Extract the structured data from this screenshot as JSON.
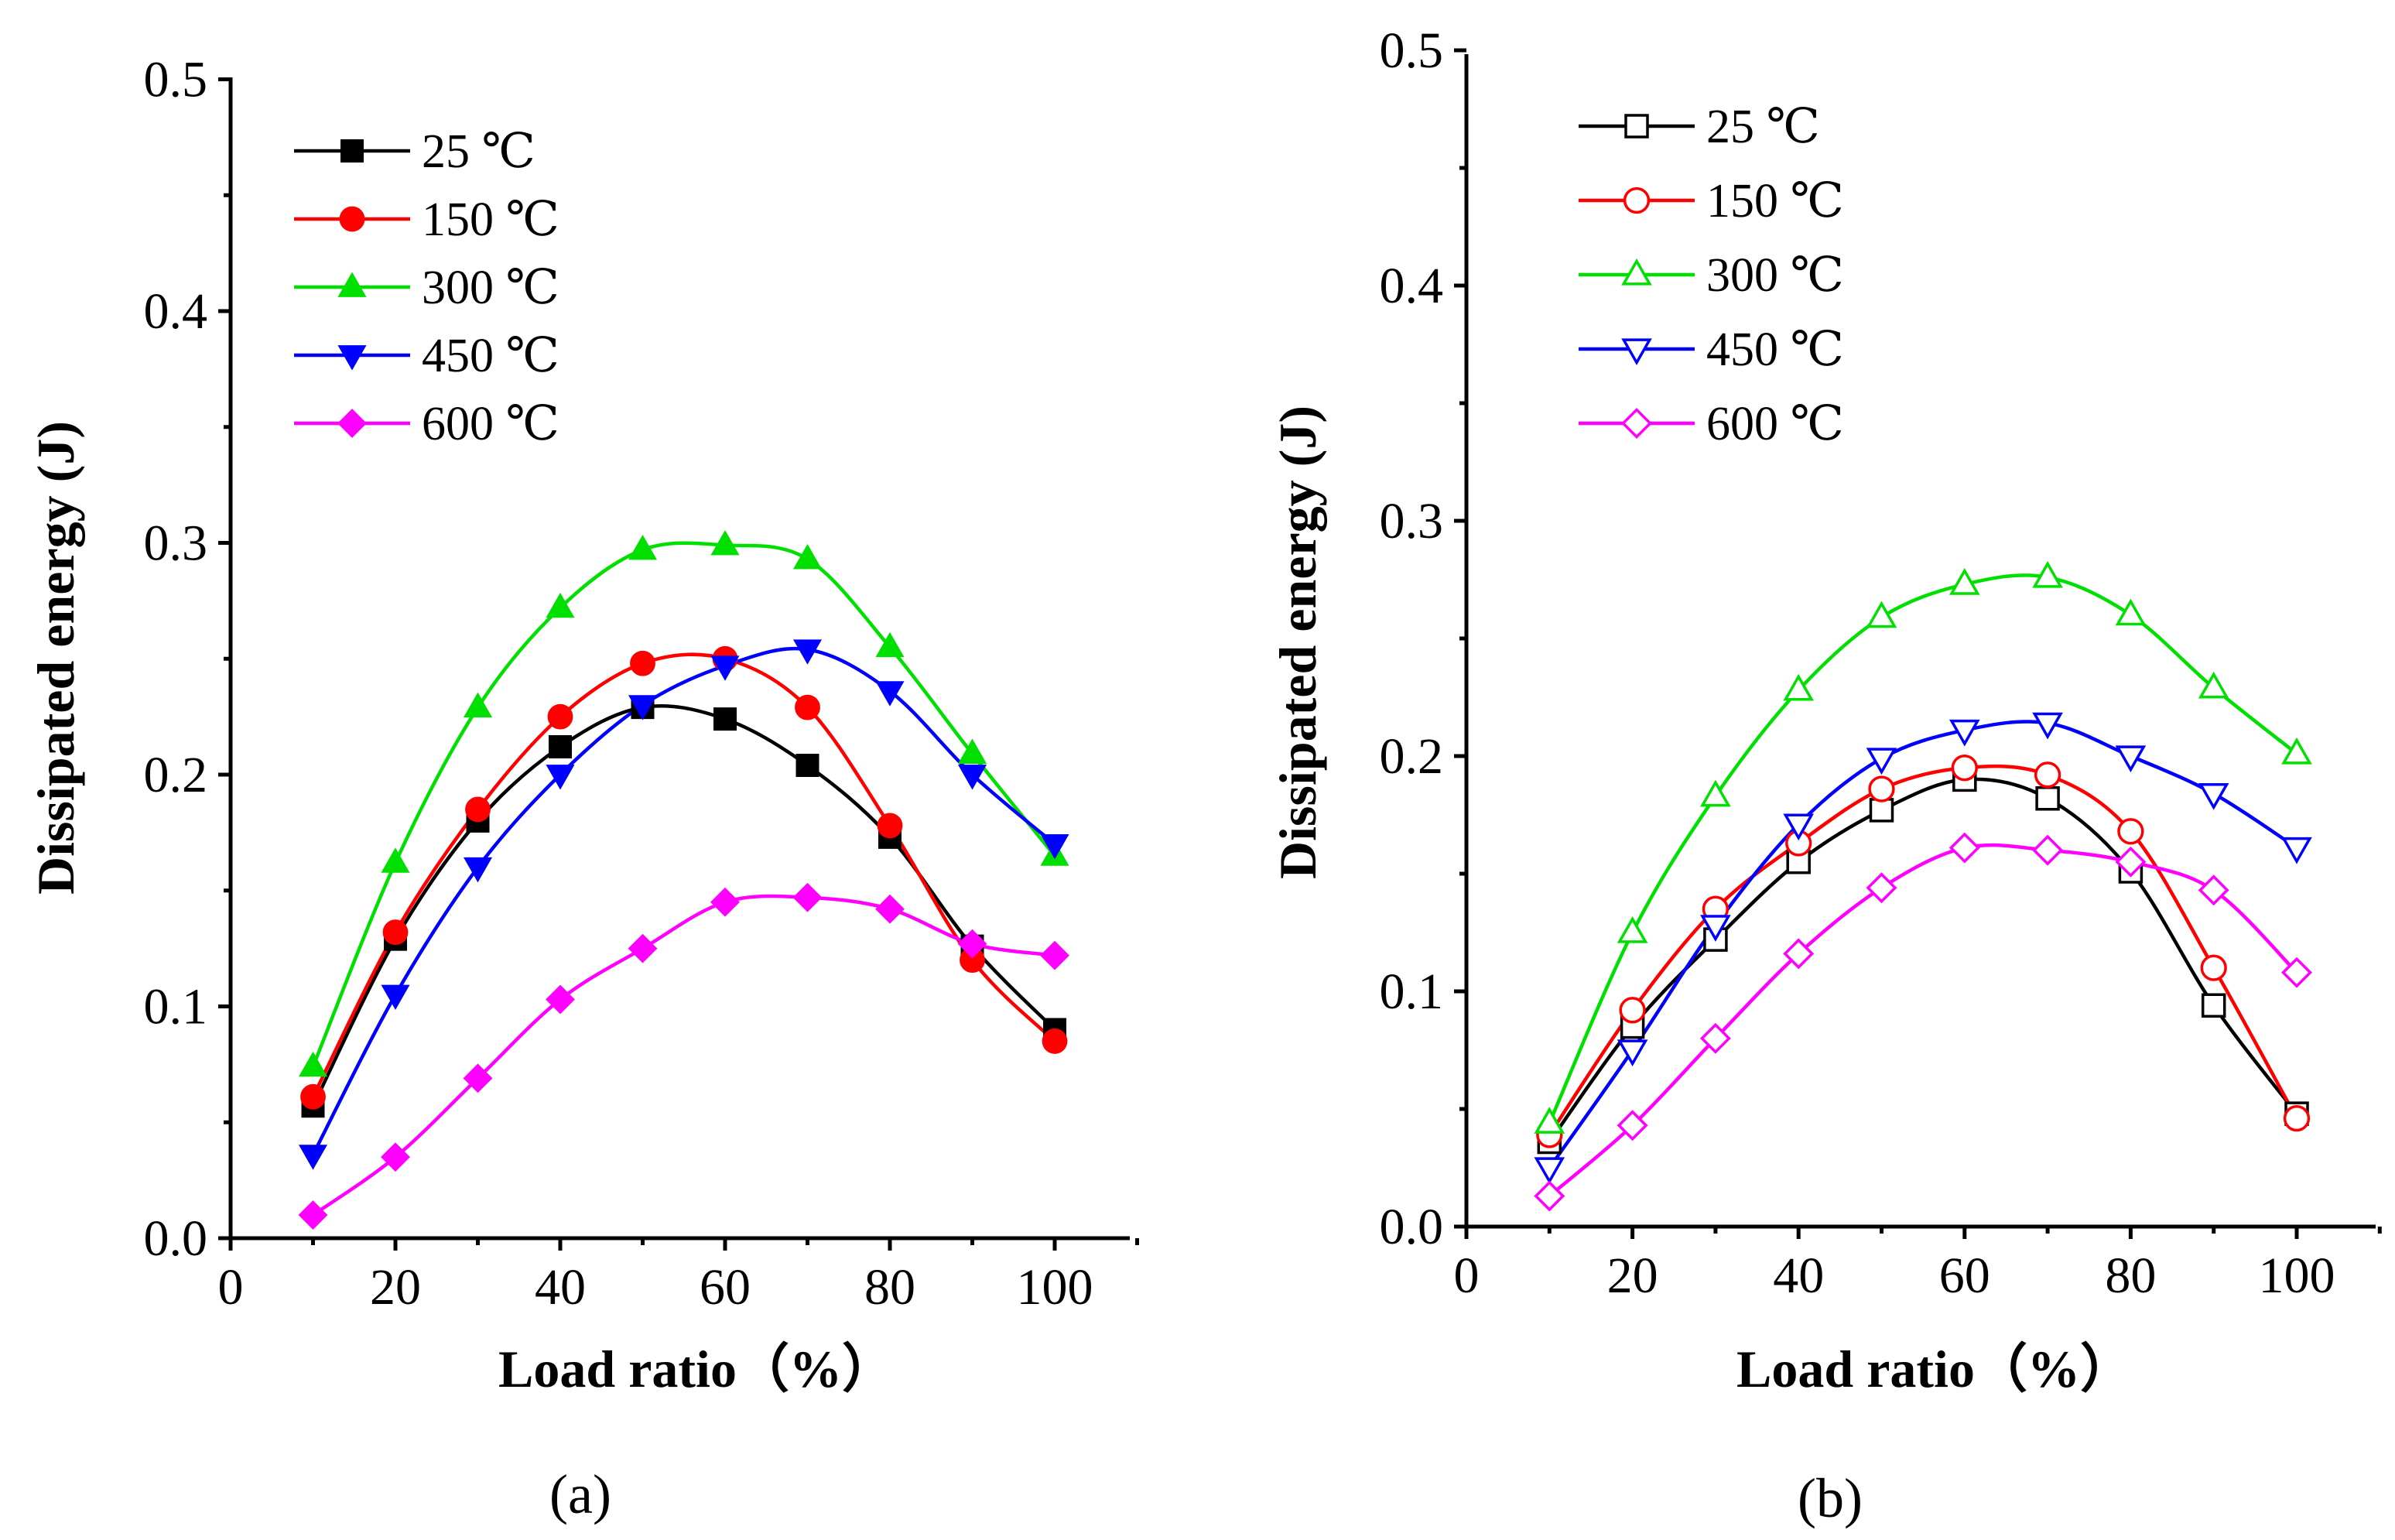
{
  "chart_data": [
    {
      "type": "line",
      "panel_label": "(a)",
      "xlabel": "Load ratio（%）",
      "ylabel": "Dissipated energy (J)",
      "xlim": [
        0,
        110
      ],
      "ylim": [
        0,
        0.5
      ],
      "xticks": [
        0,
        20,
        40,
        60,
        80,
        100
      ],
      "xtick_labels": [
        "0",
        "20",
        "40",
        "60",
        "80",
        "100"
      ],
      "yticks": [
        0.0,
        0.1,
        0.2,
        0.3,
        0.4,
        0.5
      ],
      "ytick_labels": [
        "0.0",
        "0.1",
        "0.2",
        "0.3",
        "0.4",
        "0.5"
      ],
      "marker_fill": "filled",
      "legend_position": "top-left",
      "x": [
        10,
        20,
        30,
        40,
        50,
        60,
        70,
        80,
        90,
        100
      ],
      "series": [
        {
          "name": "25 ℃",
          "color": "#000000",
          "marker": "square",
          "values": [
            0.057,
            0.129,
            0.18,
            0.212,
            0.229,
            0.224,
            0.204,
            0.173,
            0.126,
            0.09
          ]
        },
        {
          "name": "150 ℃",
          "color": "#ff0000",
          "marker": "circle",
          "values": [
            0.061,
            0.132,
            0.185,
            0.225,
            0.248,
            0.25,
            0.229,
            0.178,
            0.12,
            0.085
          ]
        },
        {
          "name": "300 ℃",
          "color": "#00e000",
          "marker": "triangle-up",
          "values": [
            0.074,
            0.162,
            0.229,
            0.272,
            0.297,
            0.299,
            0.293,
            0.255,
            0.209,
            0.165
          ]
        },
        {
          "name": "450 ℃",
          "color": "#0000ff",
          "marker": "triangle-down",
          "values": [
            0.036,
            0.105,
            0.16,
            0.2,
            0.23,
            0.247,
            0.254,
            0.236,
            0.2,
            0.17
          ]
        },
        {
          "name": "600 ℃",
          "color": "#ff00ff",
          "marker": "diamond",
          "values": [
            0.01,
            0.035,
            0.069,
            0.103,
            0.125,
            0.145,
            0.147,
            0.142,
            0.127,
            0.122
          ]
        }
      ]
    },
    {
      "type": "line",
      "panel_label": "(b)",
      "xlabel": "Load ratio（%）",
      "ylabel": "Dissipated energy (J)",
      "xlim": [
        0,
        110
      ],
      "ylim": [
        0,
        0.5
      ],
      "xticks": [
        0,
        20,
        40,
        60,
        80,
        100
      ],
      "xtick_labels": [
        "0",
        "20",
        "40",
        "60",
        "80",
        "100"
      ],
      "yticks": [
        0.0,
        0.1,
        0.2,
        0.3,
        0.4,
        0.5
      ],
      "ytick_labels": [
        "0.0",
        "0.1",
        "0.2",
        "0.3",
        "0.4",
        "0.5"
      ],
      "marker_fill": "open",
      "legend_position": "top-left",
      "x": [
        10,
        20,
        30,
        40,
        50,
        60,
        70,
        80,
        90,
        100
      ],
      "series": [
        {
          "name": "25 ℃",
          "color": "#000000",
          "marker": "square",
          "values": [
            0.036,
            0.085,
            0.122,
            0.155,
            0.177,
            0.19,
            0.182,
            0.151,
            0.094,
            0.048
          ]
        },
        {
          "name": "150 ℃",
          "color": "#ff0000",
          "marker": "circle",
          "values": [
            0.039,
            0.092,
            0.135,
            0.163,
            0.186,
            0.195,
            0.192,
            0.168,
            0.11,
            0.046
          ]
        },
        {
          "name": "300 ℃",
          "color": "#00e000",
          "marker": "triangle-up",
          "values": [
            0.044,
            0.125,
            0.183,
            0.228,
            0.259,
            0.273,
            0.276,
            0.26,
            0.229,
            0.201
          ]
        },
        {
          "name": "450 ℃",
          "color": "#0000ff",
          "marker": "triangle-down",
          "values": [
            0.025,
            0.075,
            0.128,
            0.171,
            0.199,
            0.211,
            0.214,
            0.2,
            0.184,
            0.161
          ]
        },
        {
          "name": "600 ℃",
          "color": "#ff00ff",
          "marker": "diamond",
          "values": [
            0.013,
            0.043,
            0.08,
            0.116,
            0.144,
            0.161,
            0.16,
            0.155,
            0.143,
            0.108
          ]
        }
      ]
    }
  ]
}
